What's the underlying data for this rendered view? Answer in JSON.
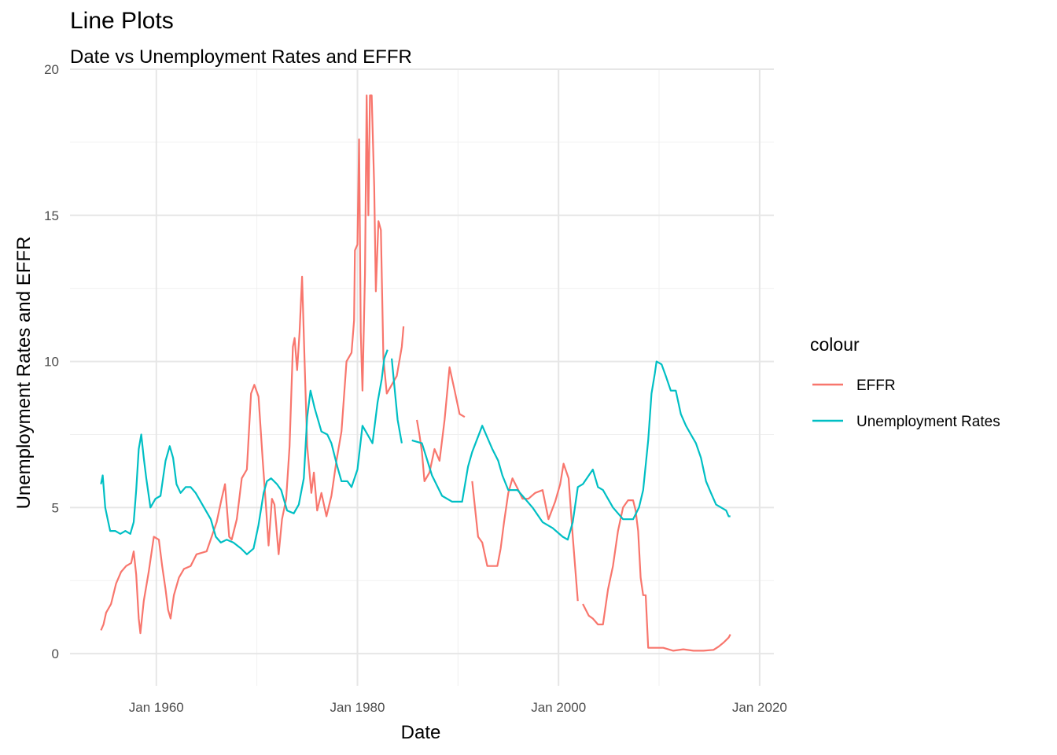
{
  "chart_data": {
    "type": "line",
    "title": "Line Plots",
    "subtitle": "Date vs Unemployment Rates and EFFR",
    "xlabel": "Date",
    "ylabel": "Unemployment Rates and EFFR",
    "xlim": [
      "1951-06-01",
      "2021-06-01"
    ],
    "ylim": [
      -1.1,
      20
    ],
    "x_ticks": [
      {
        "date": "1960-01-01",
        "label": "Jan 1960"
      },
      {
        "date": "1980-01-01",
        "label": "Jan 1980"
      },
      {
        "date": "2000-01-01",
        "label": "Jan 2000"
      },
      {
        "date": "2020-01-01",
        "label": "Jan 2020"
      }
    ],
    "y_ticks": [
      0,
      5,
      10,
      15,
      20
    ],
    "grid": true,
    "legend": {
      "title": "colour",
      "position": "right"
    },
    "series": [
      {
        "name": "EFFR",
        "color": "#F8766D",
        "points": [
          [
            "1954-07-01",
            0.8
          ],
          [
            "1954-10-01",
            1.0
          ],
          [
            "1955-01-01",
            1.4
          ],
          [
            "1955-07-01",
            1.7
          ],
          [
            "1956-01-01",
            2.4
          ],
          [
            "1956-07-01",
            2.8
          ],
          [
            "1957-01-01",
            3.0
          ],
          [
            "1957-07-01",
            3.1
          ],
          [
            "1957-10-01",
            3.5
          ],
          [
            "1958-01-01",
            2.7
          ],
          [
            "1958-04-01",
            1.2
          ],
          [
            "1958-06-01",
            0.7
          ],
          [
            "1958-10-01",
            1.8
          ],
          [
            "1959-04-01",
            2.8
          ],
          [
            "1959-10-01",
            4.0
          ],
          [
            "1960-04-01",
            3.9
          ],
          [
            "1960-08-01",
            3.0
          ],
          [
            "1960-12-01",
            2.2
          ],
          [
            "1961-03-01",
            1.5
          ],
          [
            "1961-06-01",
            1.2
          ],
          [
            "1961-10-01",
            2.0
          ],
          [
            "1962-04-01",
            2.6
          ],
          [
            "1962-10-01",
            2.9
          ],
          [
            "1963-06-01",
            3.0
          ],
          [
            "1964-01-01",
            3.4
          ],
          [
            "1965-01-01",
            3.5
          ],
          [
            "1965-07-01",
            4.0
          ],
          [
            "1966-01-01",
            4.5
          ],
          [
            "1966-07-01",
            5.3
          ],
          [
            "1966-11-01",
            5.8
          ],
          [
            "1967-04-01",
            4.0
          ],
          [
            "1967-07-01",
            3.9
          ],
          [
            "1968-01-01",
            4.6
          ],
          [
            "1968-07-01",
            6.0
          ],
          [
            "1969-01-01",
            6.3
          ],
          [
            "1969-06-01",
            8.9
          ],
          [
            "1969-10-01",
            9.2
          ],
          [
            "1970-03-01",
            8.8
          ],
          [
            "1970-08-01",
            6.6
          ],
          [
            "1970-12-01",
            5.0
          ],
          [
            "1971-03-01",
            3.7
          ],
          [
            "1971-07-01",
            5.3
          ],
          [
            "1971-10-01",
            5.1
          ],
          [
            "1972-03-01",
            3.4
          ],
          [
            "1972-07-01",
            4.6
          ],
          [
            "1972-12-01",
            5.3
          ],
          [
            "1973-04-01",
            7.1
          ],
          [
            "1973-08-01",
            10.5
          ],
          [
            "1973-10-01",
            10.8
          ],
          [
            "1974-01-01",
            9.7
          ],
          [
            "1974-04-01",
            11.0
          ],
          [
            "1974-07-01",
            12.9
          ],
          [
            "1974-10-01",
            10.0
          ],
          [
            "1975-01-01",
            7.1
          ],
          [
            "1975-06-01",
            5.5
          ],
          [
            "1975-09-01",
            6.2
          ],
          [
            "1976-01-01",
            4.9
          ],
          [
            "1976-06-01",
            5.5
          ],
          [
            "1976-12-01",
            4.7
          ],
          [
            "1977-06-01",
            5.4
          ],
          [
            "1977-12-01",
            6.6
          ],
          [
            "1978-06-01",
            7.6
          ],
          [
            "1978-12-01",
            10.0
          ],
          [
            "1979-06-01",
            10.3
          ],
          [
            "1979-09-01",
            11.4
          ],
          [
            "1979-10-01",
            13.8
          ],
          [
            "1980-01-01",
            14.0
          ],
          [
            "1980-03-01",
            17.6
          ],
          [
            "1980-05-01",
            11.0
          ],
          [
            "1980-07-01",
            9.0
          ],
          [
            "1980-10-01",
            13.0
          ],
          [
            "1980-12-01",
            19.1
          ],
          [
            "1981-02-01",
            15.0
          ],
          [
            "1981-04-01",
            19.1
          ],
          [
            "1981-06-01",
            19.1
          ],
          [
            "1981-09-01",
            16.0
          ],
          [
            "1981-11-01",
            12.4
          ],
          [
            "1982-02-01",
            14.8
          ],
          [
            "1982-05-01",
            14.5
          ],
          [
            "1982-08-01",
            10.1
          ],
          [
            "1982-12-01",
            8.9
          ],
          [
            "1983-06-01",
            9.2
          ],
          [
            "1983-12-01",
            9.5
          ],
          [
            "1984-06-01",
            10.5
          ],
          [
            "1984-08-01",
            11.2
          ],
          [
            null,
            null
          ],
          [
            "1985-12-01",
            8.0
          ],
          [
            "1986-03-01",
            7.5
          ],
          [
            "1986-06-01",
            6.9
          ],
          [
            "1986-09-01",
            5.9
          ],
          [
            "1987-03-01",
            6.2
          ],
          [
            "1987-09-01",
            7.0
          ],
          [
            "1988-03-01",
            6.6
          ],
          [
            "1988-09-01",
            8.0
          ],
          [
            "1989-03-01",
            9.8
          ],
          [
            "1989-09-01",
            9.0
          ],
          [
            "1990-03-01",
            8.2
          ],
          [
            "1990-09-01",
            8.1
          ],
          [
            null,
            null
          ],
          [
            "1991-06-01",
            5.9
          ],
          [
            "1992-01-01",
            4.0
          ],
          [
            "1992-06-01",
            3.8
          ],
          [
            "1992-12-01",
            3.0
          ],
          [
            "1993-06-01",
            3.0
          ],
          [
            "1993-12-01",
            3.0
          ],
          [
            "1994-04-01",
            3.6
          ],
          [
            "1994-08-01",
            4.5
          ],
          [
            "1995-01-01",
            5.5
          ],
          [
            "1995-06-01",
            6.0
          ],
          [
            "1996-01-01",
            5.6
          ],
          [
            "1996-06-01",
            5.3
          ],
          [
            "1997-01-01",
            5.3
          ],
          [
            "1997-09-01",
            5.5
          ],
          [
            "1998-06-01",
            5.6
          ],
          [
            "1999-01-01",
            4.6
          ],
          [
            "1999-09-01",
            5.2
          ],
          [
            "2000-03-01",
            5.8
          ],
          [
            "2000-07-01",
            6.5
          ],
          [
            "2001-01-01",
            6.0
          ],
          [
            "2001-06-01",
            4.0
          ],
          [
            "2001-12-01",
            1.8
          ],
          [
            null,
            null
          ],
          [
            "2002-06-01",
            1.7
          ],
          [
            "2003-01-01",
            1.3
          ],
          [
            "2003-06-01",
            1.2
          ],
          [
            "2003-12-01",
            1.0
          ],
          [
            "2004-06-01",
            1.0
          ],
          [
            "2004-12-01",
            2.2
          ],
          [
            "2005-06-01",
            3.0
          ],
          [
            "2005-12-01",
            4.2
          ],
          [
            "2006-06-01",
            5.0
          ],
          [
            "2006-12-01",
            5.25
          ],
          [
            "2007-06-01",
            5.25
          ],
          [
            "2007-09-01",
            4.9
          ],
          [
            "2007-12-01",
            4.2
          ],
          [
            "2008-03-01",
            2.6
          ],
          [
            "2008-06-01",
            2.0
          ],
          [
            "2008-09-01",
            2.0
          ],
          [
            "2008-12-01",
            0.2
          ],
          [
            "2009-06-01",
            0.2
          ],
          [
            "2010-06-01",
            0.2
          ],
          [
            "2011-06-01",
            0.1
          ],
          [
            "2012-06-01",
            0.15
          ],
          [
            "2013-06-01",
            0.1
          ],
          [
            "2014-06-01",
            0.1
          ],
          [
            "2015-06-01",
            0.13
          ],
          [
            "2015-12-01",
            0.24
          ],
          [
            "2016-06-01",
            0.38
          ],
          [
            "2016-12-01",
            0.55
          ],
          [
            "2017-02-01",
            0.66
          ]
        ]
      },
      {
        "name": "Unemployment Rates",
        "color": "#00BFC4",
        "points": [
          [
            "1954-07-01",
            5.8
          ],
          [
            "1954-09-01",
            6.1
          ],
          [
            "1954-12-01",
            5.0
          ],
          [
            "1955-03-01",
            4.6
          ],
          [
            "1955-06-01",
            4.2
          ],
          [
            "1955-12-01",
            4.2
          ],
          [
            "1956-06-01",
            4.1
          ],
          [
            "1956-12-01",
            4.2
          ],
          [
            "1957-06-01",
            4.1
          ],
          [
            "1957-10-01",
            4.5
          ],
          [
            "1958-01-01",
            5.6
          ],
          [
            "1958-04-01",
            7.0
          ],
          [
            "1958-07-01",
            7.5
          ],
          [
            "1958-10-01",
            6.7
          ],
          [
            "1959-01-01",
            6.0
          ],
          [
            "1959-06-01",
            5.0
          ],
          [
            "1959-12-01",
            5.3
          ],
          [
            "1960-06-01",
            5.4
          ],
          [
            "1960-12-01",
            6.6
          ],
          [
            "1961-05-01",
            7.1
          ],
          [
            "1961-09-01",
            6.7
          ],
          [
            "1962-01-01",
            5.8
          ],
          [
            "1962-06-01",
            5.5
          ],
          [
            "1962-12-01",
            5.7
          ],
          [
            "1963-06-01",
            5.7
          ],
          [
            "1963-12-01",
            5.5
          ],
          [
            "1964-06-01",
            5.2
          ],
          [
            "1964-12-01",
            4.9
          ],
          [
            "1965-06-01",
            4.6
          ],
          [
            "1965-12-01",
            4.0
          ],
          [
            "1966-06-01",
            3.8
          ],
          [
            "1967-01-01",
            3.9
          ],
          [
            "1967-09-01",
            3.8
          ],
          [
            "1968-06-01",
            3.6
          ],
          [
            "1969-01-01",
            3.4
          ],
          [
            "1969-09-01",
            3.6
          ],
          [
            "1970-03-01",
            4.4
          ],
          [
            "1970-09-01",
            5.5
          ],
          [
            "1971-01-01",
            5.9
          ],
          [
            "1971-06-01",
            6.0
          ],
          [
            "1972-01-01",
            5.8
          ],
          [
            "1972-06-01",
            5.6
          ],
          [
            "1973-01-01",
            4.9
          ],
          [
            "1973-09-01",
            4.8
          ],
          [
            "1974-03-01",
            5.1
          ],
          [
            "1974-09-01",
            6.0
          ],
          [
            "1975-01-01",
            8.1
          ],
          [
            "1975-05-01",
            9.0
          ],
          [
            "1975-10-01",
            8.4
          ],
          [
            "1976-06-01",
            7.6
          ],
          [
            "1977-01-01",
            7.5
          ],
          [
            "1977-06-01",
            7.2
          ],
          [
            "1978-01-01",
            6.4
          ],
          [
            "1978-06-01",
            5.9
          ],
          [
            "1979-01-01",
            5.9
          ],
          [
            "1979-06-01",
            5.7
          ],
          [
            "1980-01-01",
            6.3
          ],
          [
            "1980-07-01",
            7.8
          ],
          [
            "1981-01-01",
            7.5
          ],
          [
            "1981-07-01",
            7.2
          ],
          [
            "1982-01-01",
            8.6
          ],
          [
            "1982-06-01",
            9.4
          ],
          [
            "1982-09-01",
            10.1
          ],
          [
            "1983-01-01",
            10.4
          ],
          [
            null,
            null
          ],
          [
            "1983-06-01",
            10.1
          ],
          [
            "1984-01-01",
            8.0
          ],
          [
            "1984-06-01",
            7.2
          ],
          [
            null,
            null
          ],
          [
            "1985-06-01",
            7.3
          ],
          [
            "1986-06-01",
            7.2
          ],
          [
            "1987-06-01",
            6.1
          ],
          [
            "1988-06-01",
            5.4
          ],
          [
            "1989-06-01",
            5.2
          ],
          [
            "1990-06-01",
            5.2
          ],
          [
            "1991-01-01",
            6.4
          ],
          [
            "1991-06-01",
            6.9
          ],
          [
            "1992-06-01",
            7.8
          ],
          [
            "1993-06-01",
            7.0
          ],
          [
            "1994-01-01",
            6.6
          ],
          [
            "1994-06-01",
            6.1
          ],
          [
            "1995-01-01",
            5.6
          ],
          [
            "1995-12-01",
            5.6
          ],
          [
            "1996-06-01",
            5.4
          ],
          [
            "1997-06-01",
            5.0
          ],
          [
            "1998-06-01",
            4.5
          ],
          [
            "1999-06-01",
            4.3
          ],
          [
            "2000-06-01",
            4.0
          ],
          [
            "2000-12-01",
            3.9
          ],
          [
            "2001-06-01",
            4.5
          ],
          [
            "2001-12-01",
            5.7
          ],
          [
            "2002-06-01",
            5.8
          ],
          [
            "2003-06-01",
            6.3
          ],
          [
            "2003-12-01",
            5.7
          ],
          [
            "2004-06-01",
            5.6
          ],
          [
            "2005-06-01",
            5.0
          ],
          [
            "2006-06-01",
            4.6
          ],
          [
            "2007-01-01",
            4.6
          ],
          [
            "2007-06-01",
            4.6
          ],
          [
            "2008-01-01",
            5.0
          ],
          [
            "2008-06-01",
            5.6
          ],
          [
            "2008-12-01",
            7.3
          ],
          [
            "2009-04-01",
            8.9
          ],
          [
            "2009-08-01",
            9.6
          ],
          [
            "2009-10-01",
            10.0
          ],
          [
            "2010-04-01",
            9.9
          ],
          [
            "2010-09-01",
            9.5
          ],
          [
            "2011-03-01",
            9.0
          ],
          [
            "2011-09-01",
            9.0
          ],
          [
            "2012-03-01",
            8.2
          ],
          [
            "2012-09-01",
            7.8
          ],
          [
            "2013-03-01",
            7.5
          ],
          [
            "2013-09-01",
            7.2
          ],
          [
            "2014-03-01",
            6.7
          ],
          [
            "2014-09-01",
            5.9
          ],
          [
            "2015-03-01",
            5.5
          ],
          [
            "2015-09-01",
            5.1
          ],
          [
            "2016-03-01",
            5.0
          ],
          [
            "2016-09-01",
            4.9
          ],
          [
            "2016-12-01",
            4.7
          ],
          [
            "2017-02-01",
            4.7
          ]
        ]
      }
    ]
  }
}
